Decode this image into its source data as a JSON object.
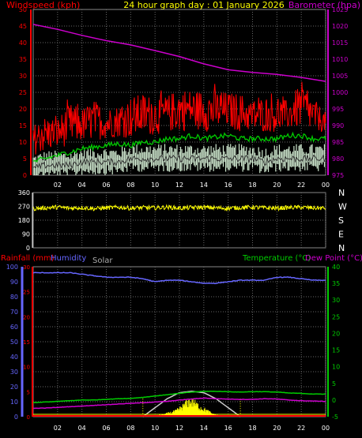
{
  "header": {
    "title": "24 hour graph day : 01 January 2026",
    "left_label": "Windspeed (kph)",
    "right_label": "Barometer (hpa)"
  },
  "colors": {
    "title": "#ffff00",
    "wind_label": "#ff0000",
    "baro_label": "#cc00cc",
    "gust": "#ff0000",
    "wind_avg": "#00cc00",
    "wind_min": "#dddddd",
    "wind_max_fill": "#cfe8cf",
    "baro": "#cc00cc",
    "direction": "#ffff00",
    "rain": "#ff0000",
    "humidity": "#6666ff",
    "solar": "#ffff00",
    "solar_max": "#cccccc",
    "temperature": "#00cc00",
    "dewpoint": "#cc00cc",
    "grid": "#666666",
    "axis_wind": "#ff0000",
    "axis_baro": "#cc00cc",
    "axis_temp": "#00cc00",
    "axis_hum": "#6666ff",
    "axis_white": "#ffffff"
  },
  "x_axis": {
    "tick_labels": [
      "02",
      "04",
      "06",
      "08",
      "10",
      "12",
      "14",
      "16",
      "18",
      "20",
      "22",
      "00"
    ]
  },
  "chart_data": [
    {
      "type": "line",
      "name": "wind",
      "title": "24 hour graph day : 01 January 2026",
      "ylabel_left": "Windspeed (kph)",
      "ylabel_right": "Barometer (hpa)",
      "ylim_left": [
        0,
        50
      ],
      "yticks_left": [
        0,
        5,
        10,
        15,
        20,
        25,
        30,
        35,
        40,
        45,
        50
      ],
      "ylim_right": [
        975,
        1025
      ],
      "yticks_right": [
        975,
        980,
        985,
        990,
        995,
        1000,
        1005,
        1010,
        1015,
        1020,
        1025
      ],
      "xlim_hours": [
        0,
        24
      ],
      "grid": true,
      "series": [
        {
          "role": "gust",
          "x": [
            0,
            1,
            2,
            3,
            4,
            5,
            6,
            7,
            8,
            9,
            10,
            11,
            12,
            13,
            14,
            15,
            16,
            17,
            18,
            19,
            20,
            21,
            22,
            23,
            24
          ],
          "values": [
            13,
            14,
            15,
            16,
            15,
            17,
            18,
            17,
            19,
            21,
            22,
            23,
            24,
            23,
            22,
            23,
            24,
            21,
            20,
            21,
            20,
            21,
            22,
            17,
            16
          ]
        },
        {
          "role": "gust_peak",
          "x": [
            0,
            1,
            2,
            3,
            4,
            5,
            6,
            7,
            8,
            9,
            10,
            11,
            12,
            13,
            14,
            15,
            16,
            17,
            18,
            19,
            20,
            21,
            22,
            23,
            24
          ],
          "values": [
            17,
            20,
            19,
            24,
            22,
            25,
            22,
            23,
            26,
            27,
            26,
            26,
            29,
            28,
            28,
            28,
            27,
            27,
            24,
            26,
            25,
            24,
            31,
            25,
            20
          ]
        },
        {
          "role": "average",
          "x": [
            0,
            1,
            2,
            3,
            4,
            5,
            6,
            7,
            8,
            9,
            10,
            11,
            12,
            13,
            14,
            15,
            16,
            17,
            18,
            19,
            20,
            21,
            22,
            23,
            24
          ],
          "values": [
            4,
            5,
            6,
            7,
            8,
            8.5,
            9,
            9.5,
            9,
            10,
            10,
            11,
            11,
            12,
            11,
            11.5,
            12,
            11,
            11,
            11,
            11,
            12,
            12,
            11,
            11
          ]
        },
        {
          "role": "min",
          "x": [
            0,
            1,
            2,
            3,
            4,
            5,
            6,
            7,
            8,
            9,
            10,
            11,
            12,
            13,
            14,
            15,
            16,
            17,
            18,
            19,
            20,
            21,
            22,
            23,
            24
          ],
          "values": [
            2,
            3,
            3,
            3,
            4,
            4,
            4,
            4,
            5,
            5,
            5,
            5,
            5,
            5,
            5,
            5,
            5,
            5,
            5,
            4,
            5,
            5,
            5,
            5,
            5
          ]
        },
        {
          "role": "barometer",
          "axis": "right",
          "x": [
            0,
            2,
            4,
            6,
            8,
            10,
            12,
            14,
            16,
            18,
            20,
            22,
            24
          ],
          "values": [
            1020.5,
            1019.0,
            1017.2,
            1015.6,
            1014.3,
            1012.6,
            1010.8,
            1008.6,
            1006.8,
            1006.0,
            1005.4,
            1004.5,
            1003.3
          ]
        }
      ]
    },
    {
      "type": "line",
      "name": "direction",
      "yticks_left": [
        0,
        90,
        180,
        270,
        360
      ],
      "ylim_left": [
        0,
        360
      ],
      "yticks_right_labels": [
        "N",
        "W",
        "S",
        "E",
        "N"
      ],
      "xlim_hours": [
        0,
        24
      ],
      "grid": true,
      "series": [
        {
          "role": "direction",
          "x": [
            0,
            1,
            2,
            3,
            4,
            5,
            6,
            7,
            8,
            9,
            10,
            11,
            12,
            13,
            14,
            15,
            16,
            17,
            18,
            19,
            20,
            21,
            22,
            23,
            24
          ],
          "values": [
            255,
            260,
            265,
            258,
            262,
            255,
            260,
            264,
            258,
            262,
            260,
            265,
            258,
            262,
            264,
            260,
            258,
            262,
            265,
            260,
            258,
            262,
            264,
            260,
            258
          ]
        }
      ]
    },
    {
      "type": "line",
      "name": "temp_hum_rain_solar",
      "labels": {
        "rainfall": "Rainfall (mm)",
        "humidity": "Humidity",
        "solar": "Solar",
        "temperature": "Temperature (°C)",
        "dewpoint": "Dew Point (°C)"
      },
      "yticks_humidity": [
        0,
        10,
        20,
        30,
        40,
        50,
        60,
        70,
        80,
        90,
        100
      ],
      "ylim_humidity": [
        0,
        100
      ],
      "yticks_rain": [
        0,
        5,
        10,
        15,
        20,
        25,
        30
      ],
      "ylim_rain": [
        0,
        30
      ],
      "yticks_temp": [
        -5,
        0,
        5,
        10,
        15,
        20,
        25,
        30,
        35,
        40
      ],
      "ylim_temp": [
        -5,
        40
      ],
      "xlim_hours": [
        0,
        24
      ],
      "grid": true,
      "series": [
        {
          "role": "humidity",
          "x": [
            0,
            1,
            2,
            3,
            4,
            5,
            6,
            7,
            8,
            9,
            10,
            11,
            12,
            13,
            14,
            15,
            16,
            17,
            18,
            19,
            20,
            21,
            22,
            23,
            24
          ],
          "values": [
            96,
            96,
            96,
            96,
            95,
            94,
            93,
            93,
            93,
            92,
            90,
            91,
            91,
            90,
            89,
            89,
            90,
            91,
            91,
            91,
            93,
            93,
            92,
            91,
            91
          ]
        },
        {
          "role": "temperature",
          "x": [
            0,
            1,
            2,
            3,
            4,
            5,
            6,
            7,
            8,
            9,
            10,
            11,
            12,
            13,
            14,
            15,
            16,
            17,
            18,
            19,
            20,
            21,
            22,
            23,
            24
          ],
          "values": [
            -0.8,
            -0.6,
            -0.4,
            -0.2,
            0,
            0,
            0.2,
            0.4,
            0.5,
            0.8,
            1.2,
            1.6,
            2,
            2.4,
            2.6,
            2.6,
            2.5,
            2.4,
            2.5,
            2.5,
            2.4,
            2.1,
            2,
            1.8,
            1.8
          ]
        },
        {
          "role": "dewpoint",
          "x": [
            0,
            1,
            2,
            3,
            4,
            5,
            6,
            7,
            8,
            9,
            10,
            11,
            12,
            13,
            14,
            15,
            16,
            17,
            18,
            19,
            20,
            21,
            22,
            23,
            24
          ],
          "values": [
            -2.5,
            -2.4,
            -2.2,
            -2.0,
            -1.8,
            -1.6,
            -1.4,
            -1.2,
            -1.0,
            -0.8,
            -0.6,
            -0.4,
            0,
            0.3,
            0.6,
            0.4,
            0.3,
            0.2,
            0.2,
            0.4,
            0.3,
            0,
            -0.2,
            -0.3,
            -0.4
          ]
        },
        {
          "role": "rain",
          "x": [
            0,
            24
          ],
          "values": [
            0,
            0
          ]
        },
        {
          "role": "solar_max_curve",
          "axis": "humidity",
          "x": [
            9,
            10,
            11,
            12,
            13,
            14,
            15,
            16,
            17
          ],
          "values": [
            0,
            6,
            12,
            16,
            17,
            16,
            12,
            6,
            0
          ]
        },
        {
          "role": "solar",
          "x": [
            10.2,
            10.8,
            11.2,
            11.6,
            12,
            12.4,
            12.8,
            13.2,
            13.6,
            14,
            14.4,
            14.8,
            15.2
          ],
          "values": [
            1,
            2,
            3,
            4,
            6,
            9,
            12,
            11,
            8,
            6,
            4,
            2,
            1
          ]
        }
      ]
    }
  ]
}
